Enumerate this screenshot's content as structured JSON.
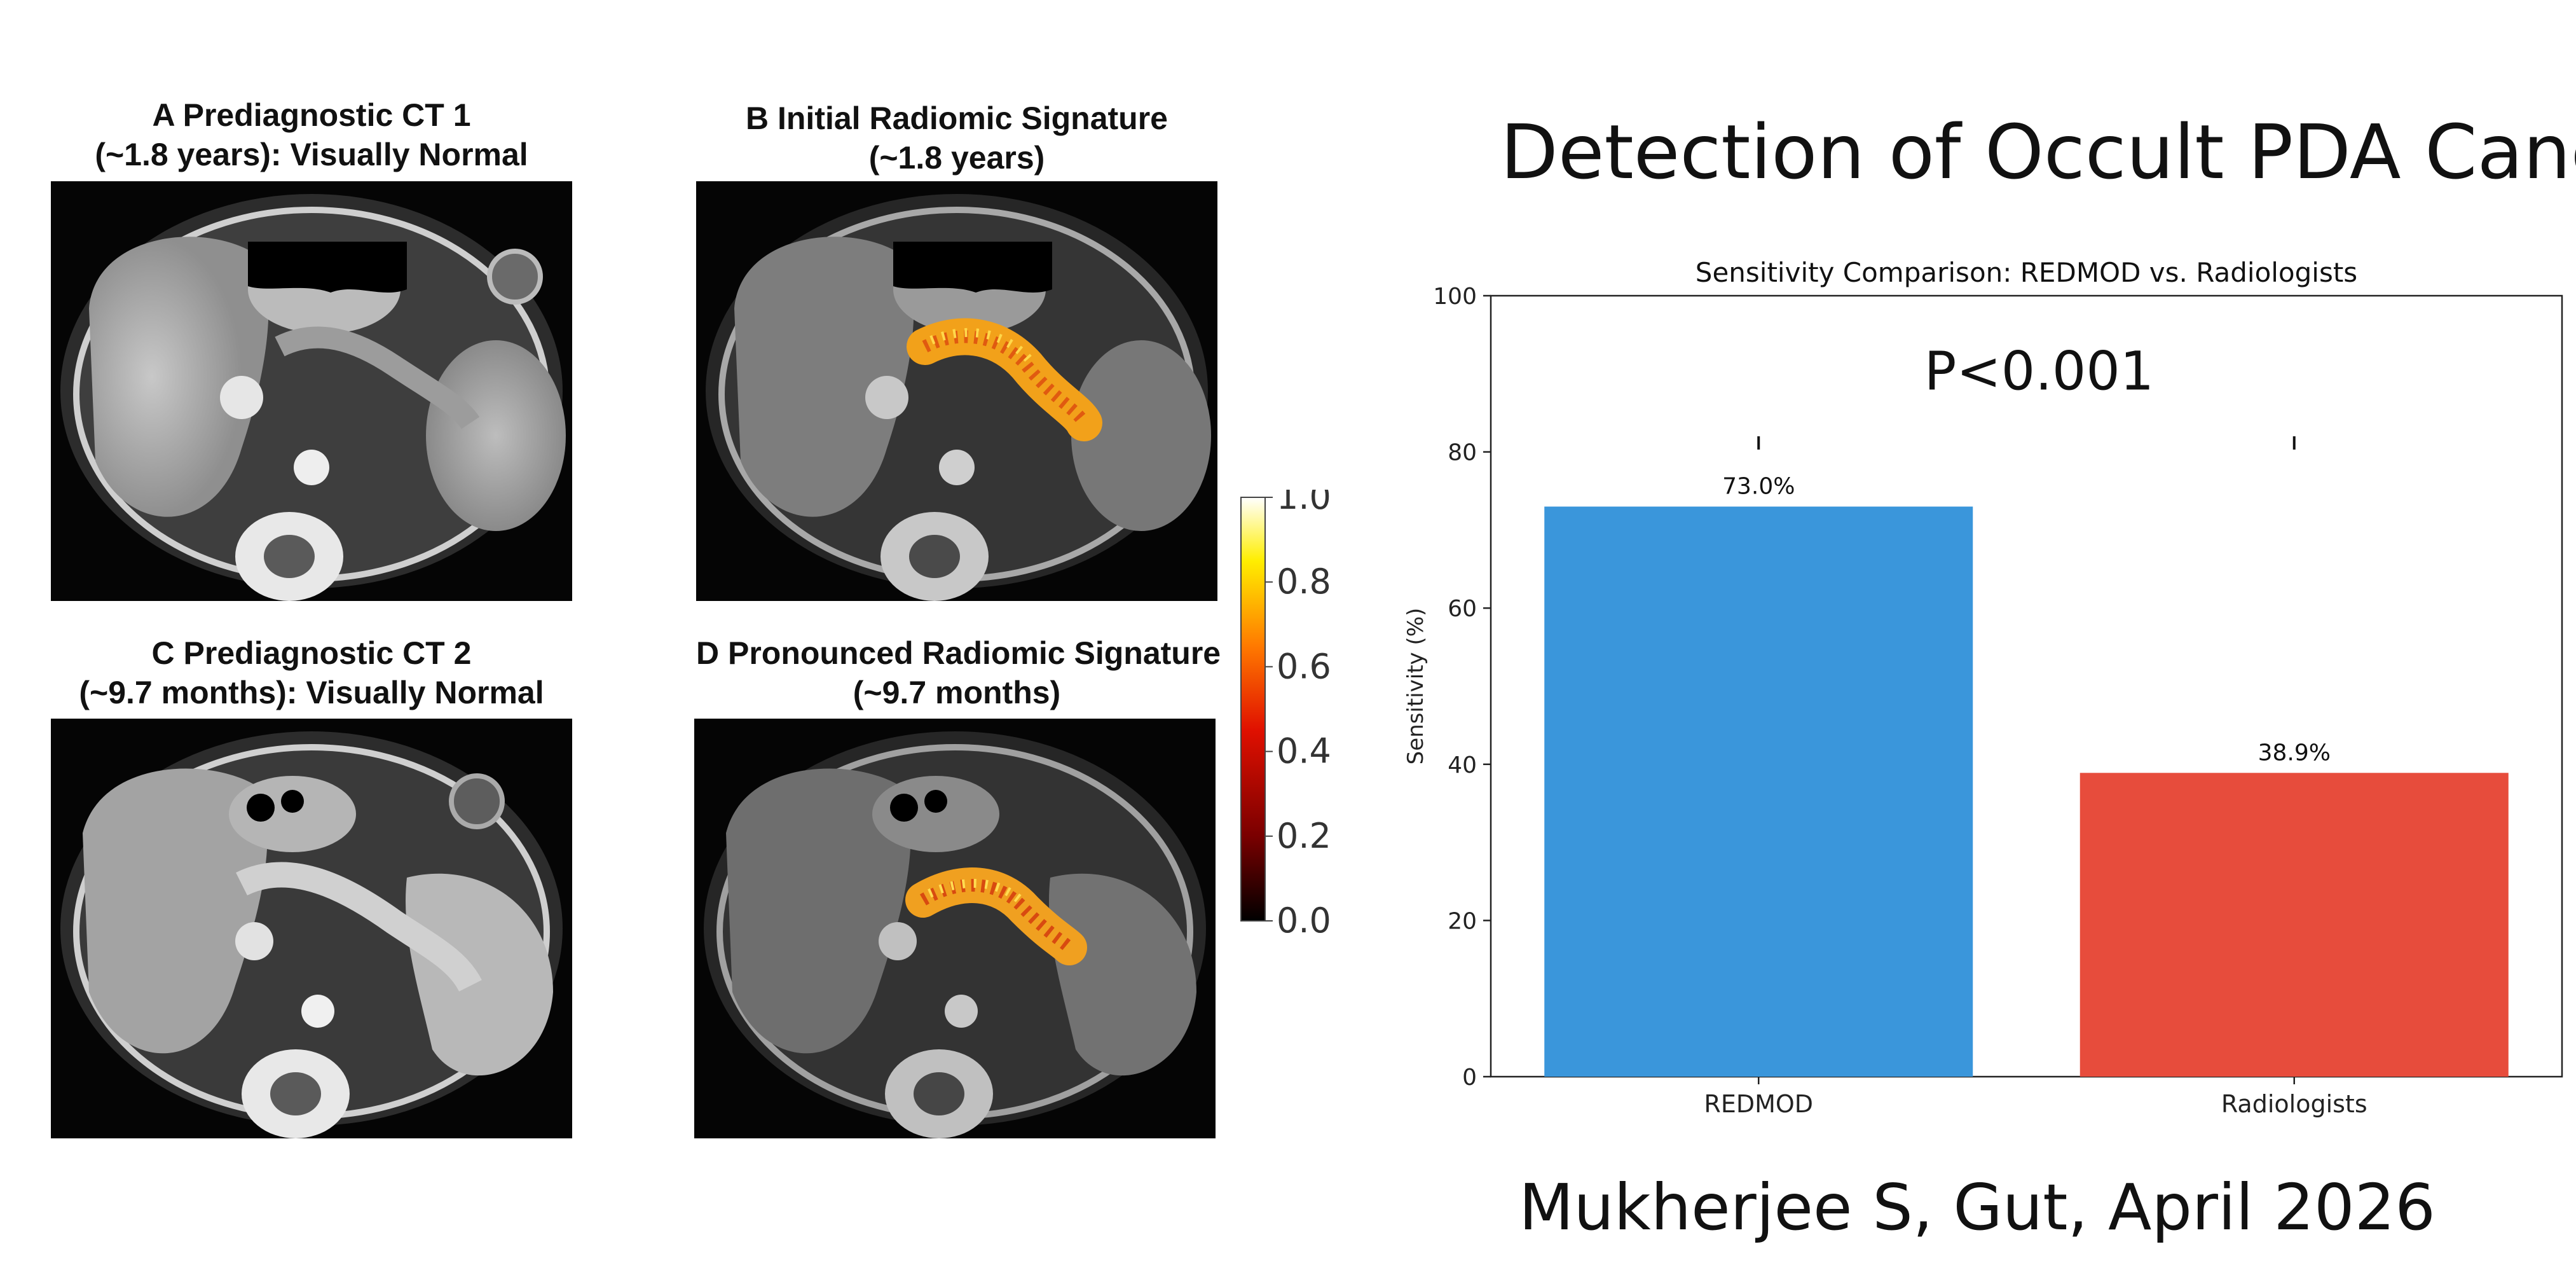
{
  "header": {
    "title": "Detection of Occult PDA Cancer"
  },
  "footer": {
    "citation": "Mukherjee S, Gut, April 2026"
  },
  "panels": [
    {
      "letter": "A",
      "title_line1": "A  Prediagnostic CT 1",
      "title_line2": "(~1.8 years): Visually Normal",
      "overlay": false
    },
    {
      "letter": "B",
      "title_line1": "B  Initial Radiomic Signature",
      "title_line2": "(~1.8 years)",
      "overlay": true
    },
    {
      "letter": "C",
      "title_line1": "C  Prediagnostic CT 2",
      "title_line2": "(~9.7 months): Visually Normal",
      "overlay": false
    },
    {
      "letter": "D",
      "title_line1": "D  Pronounced Radiomic Signature",
      "title_line2": "(~9.7 months)",
      "overlay": true
    }
  ],
  "colorbar": {
    "ticks": [
      "1.0",
      "0.8",
      "0.6",
      "0.4",
      "0.2",
      "0.0"
    ],
    "colormap": [
      "#000000",
      "#7a0000",
      "#e01000",
      "#ff7a00",
      "#ffee00",
      "#ffffff"
    ]
  },
  "chart_data": {
    "type": "bar",
    "title": "Sensitivity Comparison: REDMOD vs. Radiologists",
    "ylabel": "Sensitivity (%)",
    "xlabel": "",
    "categories": [
      "REDMOD",
      "Radiologists"
    ],
    "values": [
      73.0,
      38.9
    ],
    "value_labels": [
      "73.0%",
      "38.9%"
    ],
    "colors": [
      "#3a96db",
      "#e74c3c"
    ],
    "ylim": [
      0,
      100
    ],
    "yticks": [
      0,
      20,
      40,
      60,
      80,
      100
    ],
    "annotation": "P<0.001",
    "grid": false,
    "legend": "none"
  }
}
